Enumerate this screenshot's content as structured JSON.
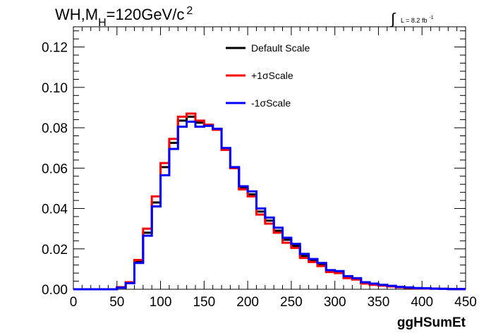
{
  "chart_data": {
    "type": "line",
    "subtype": "step-histogram",
    "title": {
      "main": "WH,M",
      "sub": "H",
      "rest": "=120GeV/c",
      "sup": "2"
    },
    "lumi": {
      "integral_symbol": "∫",
      "text": "L = 8.2 fb",
      "sup": "-1"
    },
    "xlabel": "ggHSumEt",
    "ylabel": "",
    "xlim": [
      0,
      450
    ],
    "ylim": [
      0,
      0.13
    ],
    "x_ticks": [
      0,
      50,
      100,
      150,
      200,
      250,
      300,
      350,
      400,
      450
    ],
    "x_tick_labels": [
      "0",
      "50",
      "100",
      "150",
      "200",
      "250",
      "300",
      "350",
      "400",
      "450"
    ],
    "y_ticks": [
      0,
      0.02,
      0.04,
      0.06,
      0.08,
      0.1,
      0.12
    ],
    "y_tick_labels": [
      "0.00",
      "0.02",
      "0.04",
      "0.06",
      "0.08",
      "0.10",
      "0.12"
    ],
    "grid": false,
    "legend_position": "top-center",
    "bin_edges": [
      0,
      10,
      20,
      30,
      40,
      50,
      60,
      70,
      80,
      90,
      100,
      110,
      120,
      130,
      140,
      150,
      160,
      170,
      180,
      190,
      200,
      210,
      220,
      230,
      240,
      250,
      260,
      270,
      280,
      290,
      300,
      310,
      320,
      330,
      340,
      350,
      360,
      370,
      380,
      390,
      400,
      410,
      420,
      430,
      440,
      450
    ],
    "series": [
      {
        "name": "Default Scale",
        "color": "#000000",
        "values": [
          0,
          0,
          0,
          0,
          0,
          0.001,
          0.0035,
          0.0135,
          0.028,
          0.043,
          0.0605,
          0.0725,
          0.0835,
          0.0855,
          0.0825,
          0.081,
          0.0795,
          0.0695,
          0.06,
          0.05,
          0.047,
          0.0385,
          0.034,
          0.029,
          0.0245,
          0.0215,
          0.0165,
          0.014,
          0.012,
          0.009,
          0.0085,
          0.006,
          0.005,
          0.003,
          0.0025,
          0.002,
          0.0015,
          0.001,
          0.0008,
          0.0005,
          0.0004,
          0.0003,
          0.0002,
          0.0001,
          0.0001
        ]
      },
      {
        "name": "+1σScale",
        "color": "#ff0000",
        "values": [
          0,
          0,
          0,
          0,
          0,
          0.001,
          0.0035,
          0.0145,
          0.03,
          0.046,
          0.0625,
          0.0745,
          0.0855,
          0.087,
          0.0835,
          0.0815,
          0.079,
          0.069,
          0.06,
          0.0495,
          0.046,
          0.037,
          0.0325,
          0.028,
          0.023,
          0.0205,
          0.0155,
          0.0135,
          0.0115,
          0.0085,
          0.008,
          0.0055,
          0.0048,
          0.0028,
          0.0022,
          0.0018,
          0.0014,
          0.001,
          0.0007,
          0.0005,
          0.0004,
          0.0003,
          0.0002,
          0.0001,
          0.0001
        ]
      },
      {
        "name": "-1σScale",
        "color": "#0000ff",
        "values": [
          0,
          0,
          0,
          0,
          0,
          0.0008,
          0.003,
          0.013,
          0.0265,
          0.041,
          0.0565,
          0.0695,
          0.0805,
          0.083,
          0.0805,
          0.081,
          0.0795,
          0.07,
          0.0605,
          0.051,
          0.0485,
          0.04,
          0.0355,
          0.0305,
          0.0255,
          0.0225,
          0.0175,
          0.015,
          0.013,
          0.0095,
          0.009,
          0.0065,
          0.0055,
          0.0035,
          0.0028,
          0.0022,
          0.0017,
          0.0012,
          0.0009,
          0.0006,
          0.0005,
          0.0003,
          0.0002,
          0.0001,
          0.0001
        ]
      }
    ]
  }
}
